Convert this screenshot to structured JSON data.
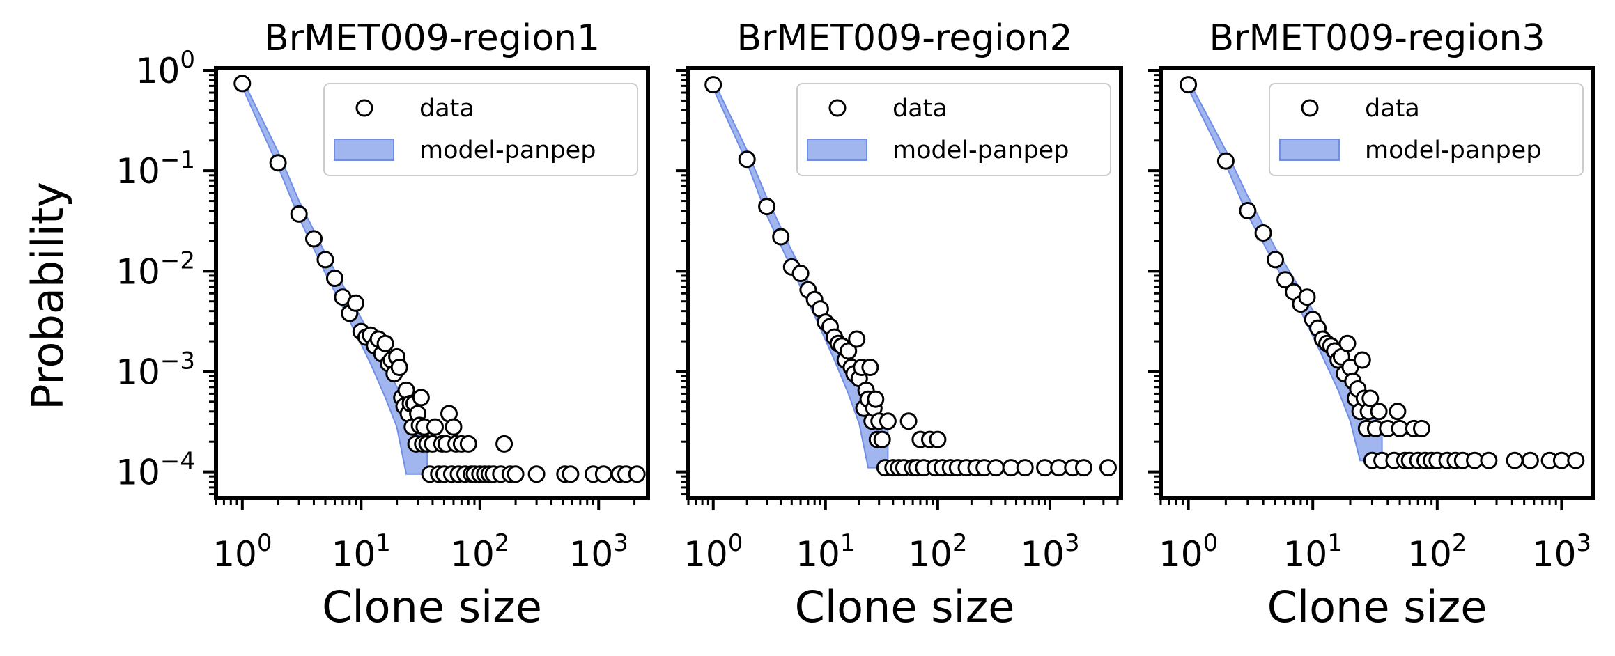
{
  "figure": {
    "ylabel": "Probability",
    "colors": {
      "fill": "#6f8ee6",
      "fill_opacity": 0.65,
      "marker_edge": "#000000",
      "marker_face": "#ffffff",
      "axes": "#000000"
    }
  },
  "chart_data": [
    {
      "type": "scatter",
      "title": "BrMET009-region1",
      "xlabel": "Clone size",
      "ylabel": "Probability",
      "xscale": "log",
      "yscale": "log",
      "xlim": [
        0.6,
        2600
      ],
      "ylim": [
        5.5e-05,
        1.05
      ],
      "xticks": [
        "10^0",
        "10^1",
        "10^2",
        "10^3"
      ],
      "yticks": [
        "10^0",
        "10^-1",
        "10^-2",
        "10^-3",
        "10^-4"
      ],
      "legend": {
        "position": "top-right",
        "entries": [
          "data",
          "model-panpep"
        ]
      },
      "series": [
        {
          "name": "data",
          "kind": "scatter",
          "points": [
            [
              1,
              0.74
            ],
            [
              2,
              0.12
            ],
            [
              3,
              0.037
            ],
            [
              4,
              0.021
            ],
            [
              5,
              0.013
            ],
            [
              6,
              0.0085
            ],
            [
              7,
              0.0055
            ],
            [
              8,
              0.0038
            ],
            [
              9,
              0.0048
            ],
            [
              10,
              0.0025
            ],
            [
              11,
              0.0022
            ],
            [
              12,
              0.0023
            ],
            [
              13,
              0.0018
            ],
            [
              14,
              0.0021
            ],
            [
              15,
              0.0015
            ],
            [
              16,
              0.0019
            ],
            [
              17,
              0.0012
            ],
            [
              18,
              0.0013
            ],
            [
              19,
              0.00095
            ],
            [
              20,
              0.0014
            ],
            [
              21,
              0.0011
            ],
            [
              22,
              0.00055
            ],
            [
              23,
              0.00045
            ],
            [
              24,
              0.00065
            ],
            [
              25,
              0.00038
            ],
            [
              26,
              0.00048
            ],
            [
              27,
              0.00028
            ],
            [
              28,
              0.00048
            ],
            [
              29,
              0.00019
            ],
            [
              30,
              0.00038
            ],
            [
              31,
              0.00029
            ],
            [
              32,
              0.00055
            ],
            [
              33,
              0.00019
            ],
            [
              34,
              0.00028
            ],
            [
              36,
              0.00019
            ],
            [
              38,
              9.5e-05
            ],
            [
              40,
              0.00019
            ],
            [
              42,
              0.00028
            ],
            [
              45,
              9.5e-05
            ],
            [
              48,
              0.00019
            ],
            [
              50,
              9.5e-05
            ],
            [
              52,
              0.00019
            ],
            [
              55,
              0.00038
            ],
            [
              58,
              9.5e-05
            ],
            [
              60,
              0.00028
            ],
            [
              63,
              0.00019
            ],
            [
              66,
              9.5e-05
            ],
            [
              70,
              0.00019
            ],
            [
              75,
              9.5e-05
            ],
            [
              80,
              0.00019
            ],
            [
              85,
              9.5e-05
            ],
            [
              90,
              9.5e-05
            ],
            [
              100,
              9.5e-05
            ],
            [
              110,
              9.5e-05
            ],
            [
              120,
              9.5e-05
            ],
            [
              130,
              9.5e-05
            ],
            [
              150,
              9.5e-05
            ],
            [
              160,
              0.00019
            ],
            [
              180,
              9.5e-05
            ],
            [
              200,
              9.5e-05
            ],
            [
              300,
              9.5e-05
            ],
            [
              520,
              9.5e-05
            ],
            [
              580,
              9.5e-05
            ],
            [
              900,
              9.5e-05
            ],
            [
              1100,
              9.5e-05
            ],
            [
              1500,
              9.5e-05
            ],
            [
              1700,
              9.5e-05
            ],
            [
              2100,
              9.5e-05
            ]
          ]
        },
        {
          "name": "model-panpep",
          "kind": "band",
          "x": [
            1,
            2,
            3,
            5,
            8,
            12,
            16,
            20,
            24,
            28,
            32,
            36
          ],
          "low": [
            0.68,
            0.11,
            0.034,
            0.0095,
            0.0032,
            0.0012,
            0.00055,
            0.00028,
            9.5e-05,
            9.5e-05,
            9.5e-05,
            9.5e-05
          ],
          "high": [
            0.82,
            0.155,
            0.05,
            0.015,
            0.0055,
            0.0023,
            0.0012,
            0.0007,
            0.00045,
            0.00035,
            0.00028,
            0.00025
          ]
        }
      ]
    },
    {
      "type": "scatter",
      "title": "BrMET009-region2",
      "xlabel": "Clone size",
      "ylabel": "",
      "xscale": "log",
      "yscale": "log",
      "xlim": [
        0.6,
        4300
      ],
      "ylim": [
        5.5e-05,
        1.05
      ],
      "xticks": [
        "10^0",
        "10^1",
        "10^2",
        "10^3"
      ],
      "yticks": [],
      "legend": {
        "position": "top-right",
        "entries": [
          "data",
          "model-panpep"
        ]
      },
      "series": [
        {
          "name": "data",
          "kind": "scatter",
          "points": [
            [
              1,
              0.72
            ],
            [
              2,
              0.13
            ],
            [
              3,
              0.044
            ],
            [
              4,
              0.022
            ],
            [
              5,
              0.011
            ],
            [
              6,
              0.0095
            ],
            [
              7,
              0.0065
            ],
            [
              8,
              0.0052
            ],
            [
              9,
              0.0042
            ],
            [
              10,
              0.0031
            ],
            [
              11,
              0.0028
            ],
            [
              12,
              0.0022
            ],
            [
              13,
              0.0019
            ],
            [
              14,
              0.0018
            ],
            [
              15,
              0.0013
            ],
            [
              16,
              0.0016
            ],
            [
              17,
              0.0011
            ],
            [
              18,
              0.00095
            ],
            [
              19,
              0.0021
            ],
            [
              20,
              0.00085
            ],
            [
              21,
              0.0011
            ],
            [
              22,
              0.00043
            ],
            [
              23,
              0.00065
            ],
            [
              24,
              0.00053
            ],
            [
              25,
              0.0011
            ],
            [
              26,
              0.00032
            ],
            [
              27,
              0.00043
            ],
            [
              28,
              0.00053
            ],
            [
              29,
              0.00021
            ],
            [
              30,
              0.00032
            ],
            [
              32,
              0.00021
            ],
            [
              34,
              0.00011
            ],
            [
              36,
              0.00032
            ],
            [
              40,
              0.00011
            ],
            [
              45,
              0.00011
            ],
            [
              50,
              0.00011
            ],
            [
              55,
              0.00032
            ],
            [
              60,
              0.00011
            ],
            [
              65,
              0.00011
            ],
            [
              70,
              0.00021
            ],
            [
              75,
              0.00011
            ],
            [
              85,
              0.00021
            ],
            [
              95,
              0.00011
            ],
            [
              100,
              0.00021
            ],
            [
              110,
              0.00011
            ],
            [
              130,
              0.00011
            ],
            [
              150,
              0.00011
            ],
            [
              180,
              0.00011
            ],
            [
              220,
              0.00011
            ],
            [
              260,
              0.00011
            ],
            [
              330,
              0.00011
            ],
            [
              450,
              0.00011
            ],
            [
              600,
              0.00011
            ],
            [
              900,
              0.00011
            ],
            [
              1200,
              0.00011
            ],
            [
              1600,
              0.00011
            ],
            [
              2000,
              0.00011
            ],
            [
              3300,
              0.00011
            ]
          ]
        },
        {
          "name": "model-panpep",
          "kind": "band",
          "x": [
            1,
            2,
            3,
            5,
            8,
            12,
            16,
            20,
            24,
            28,
            32,
            36
          ],
          "low": [
            0.66,
            0.12,
            0.036,
            0.0105,
            0.0036,
            0.0013,
            0.0006,
            0.0003,
            0.00011,
            0.00011,
            0.00011,
            0.00011
          ],
          "high": [
            0.8,
            0.16,
            0.054,
            0.016,
            0.006,
            0.0025,
            0.0013,
            0.00075,
            0.0005,
            0.0004,
            0.00032,
            0.00028
          ]
        }
      ]
    },
    {
      "type": "scatter",
      "title": "BrMET009-region3",
      "xlabel": "Clone size",
      "ylabel": "",
      "xscale": "log",
      "yscale": "log",
      "xlim": [
        0.6,
        1800
      ],
      "ylim": [
        5.5e-05,
        1.05
      ],
      "xticks": [
        "10^0",
        "10^1",
        "10^2",
        "10^3"
      ],
      "yticks": [],
      "legend": {
        "position": "top-right",
        "entries": [
          "data",
          "model-panpep"
        ]
      },
      "series": [
        {
          "name": "data",
          "kind": "scatter",
          "points": [
            [
              1,
              0.72
            ],
            [
              2,
              0.125
            ],
            [
              3,
              0.04
            ],
            [
              4,
              0.024
            ],
            [
              5,
              0.013
            ],
            [
              6,
              0.0082
            ],
            [
              7,
              0.0062
            ],
            [
              8,
              0.0047
            ],
            [
              9,
              0.0055
            ],
            [
              10,
              0.0033
            ],
            [
              11,
              0.0027
            ],
            [
              12,
              0.0021
            ],
            [
              13,
              0.0019
            ],
            [
              14,
              0.0018
            ],
            [
              15,
              0.0016
            ],
            [
              16,
              0.0013
            ],
            [
              17,
              0.0014
            ],
            [
              18,
              0.00095
            ],
            [
              19,
              0.0019
            ],
            [
              20,
              0.0011
            ],
            [
              21,
              0.0008
            ],
            [
              22,
              0.00054
            ],
            [
              23,
              0.00067
            ],
            [
              24,
              0.0004
            ],
            [
              25,
              0.0013
            ],
            [
              26,
              0.00054
            ],
            [
              27,
              0.00027
            ],
            [
              28,
              0.0004
            ],
            [
              29,
              0.00054
            ],
            [
              30,
              0.00013
            ],
            [
              32,
              0.00027
            ],
            [
              34,
              0.0004
            ],
            [
              36,
              0.00013
            ],
            [
              40,
              0.00027
            ],
            [
              45,
              0.00013
            ],
            [
              48,
              0.0004
            ],
            [
              50,
              0.00027
            ],
            [
              55,
              0.00013
            ],
            [
              60,
              0.00013
            ],
            [
              65,
              0.00027
            ],
            [
              70,
              0.00013
            ],
            [
              75,
              0.00027
            ],
            [
              80,
              0.00013
            ],
            [
              90,
              0.00013
            ],
            [
              100,
              0.00013
            ],
            [
              120,
              0.00013
            ],
            [
              140,
              0.00013
            ],
            [
              160,
              0.00013
            ],
            [
              200,
              0.00013
            ],
            [
              260,
              0.00013
            ],
            [
              420,
              0.00013
            ],
            [
              560,
              0.00013
            ],
            [
              800,
              0.00013
            ],
            [
              1000,
              0.00013
            ],
            [
              1300,
              0.00013
            ]
          ]
        },
        {
          "name": "model-panpep",
          "kind": "band",
          "x": [
            1,
            2,
            3,
            5,
            8,
            12,
            16,
            20,
            24,
            28,
            32,
            36
          ],
          "low": [
            0.66,
            0.115,
            0.036,
            0.0115,
            0.004,
            0.0014,
            0.00065,
            0.00032,
            0.00013,
            0.00013,
            0.00013,
            0.00013
          ],
          "high": [
            0.8,
            0.16,
            0.056,
            0.017,
            0.0065,
            0.0028,
            0.0014,
            0.0008,
            0.0005,
            0.0004,
            0.00033,
            0.0003
          ]
        }
      ]
    }
  ]
}
